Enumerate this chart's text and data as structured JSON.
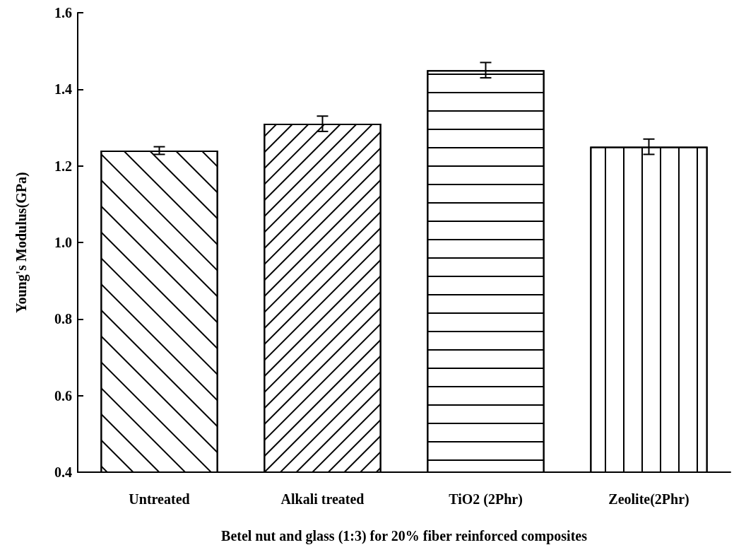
{
  "chart_data": {
    "type": "bar",
    "xlabel": "Betel nut and glass (1:3) for 20% fiber reinforced composites",
    "ylabel": "Young's Modulus(GPa)",
    "categories": [
      "Untreated",
      "Alkali treated",
      "TiO2 (2Phr)",
      "Zeolite(2Phr)"
    ],
    "values": [
      1.24,
      1.31,
      1.45,
      1.25
    ],
    "errors": [
      0.01,
      0.02,
      0.02,
      0.02
    ],
    "color": "#ffffff",
    "ylim": [
      0.4,
      1.6
    ],
    "yticks": [
      0.4,
      0.6,
      0.8,
      {
        "value": 1.0,
        "label": "1.0"
      },
      1.2,
      1.4,
      1.6
    ],
    "grid": false
  }
}
